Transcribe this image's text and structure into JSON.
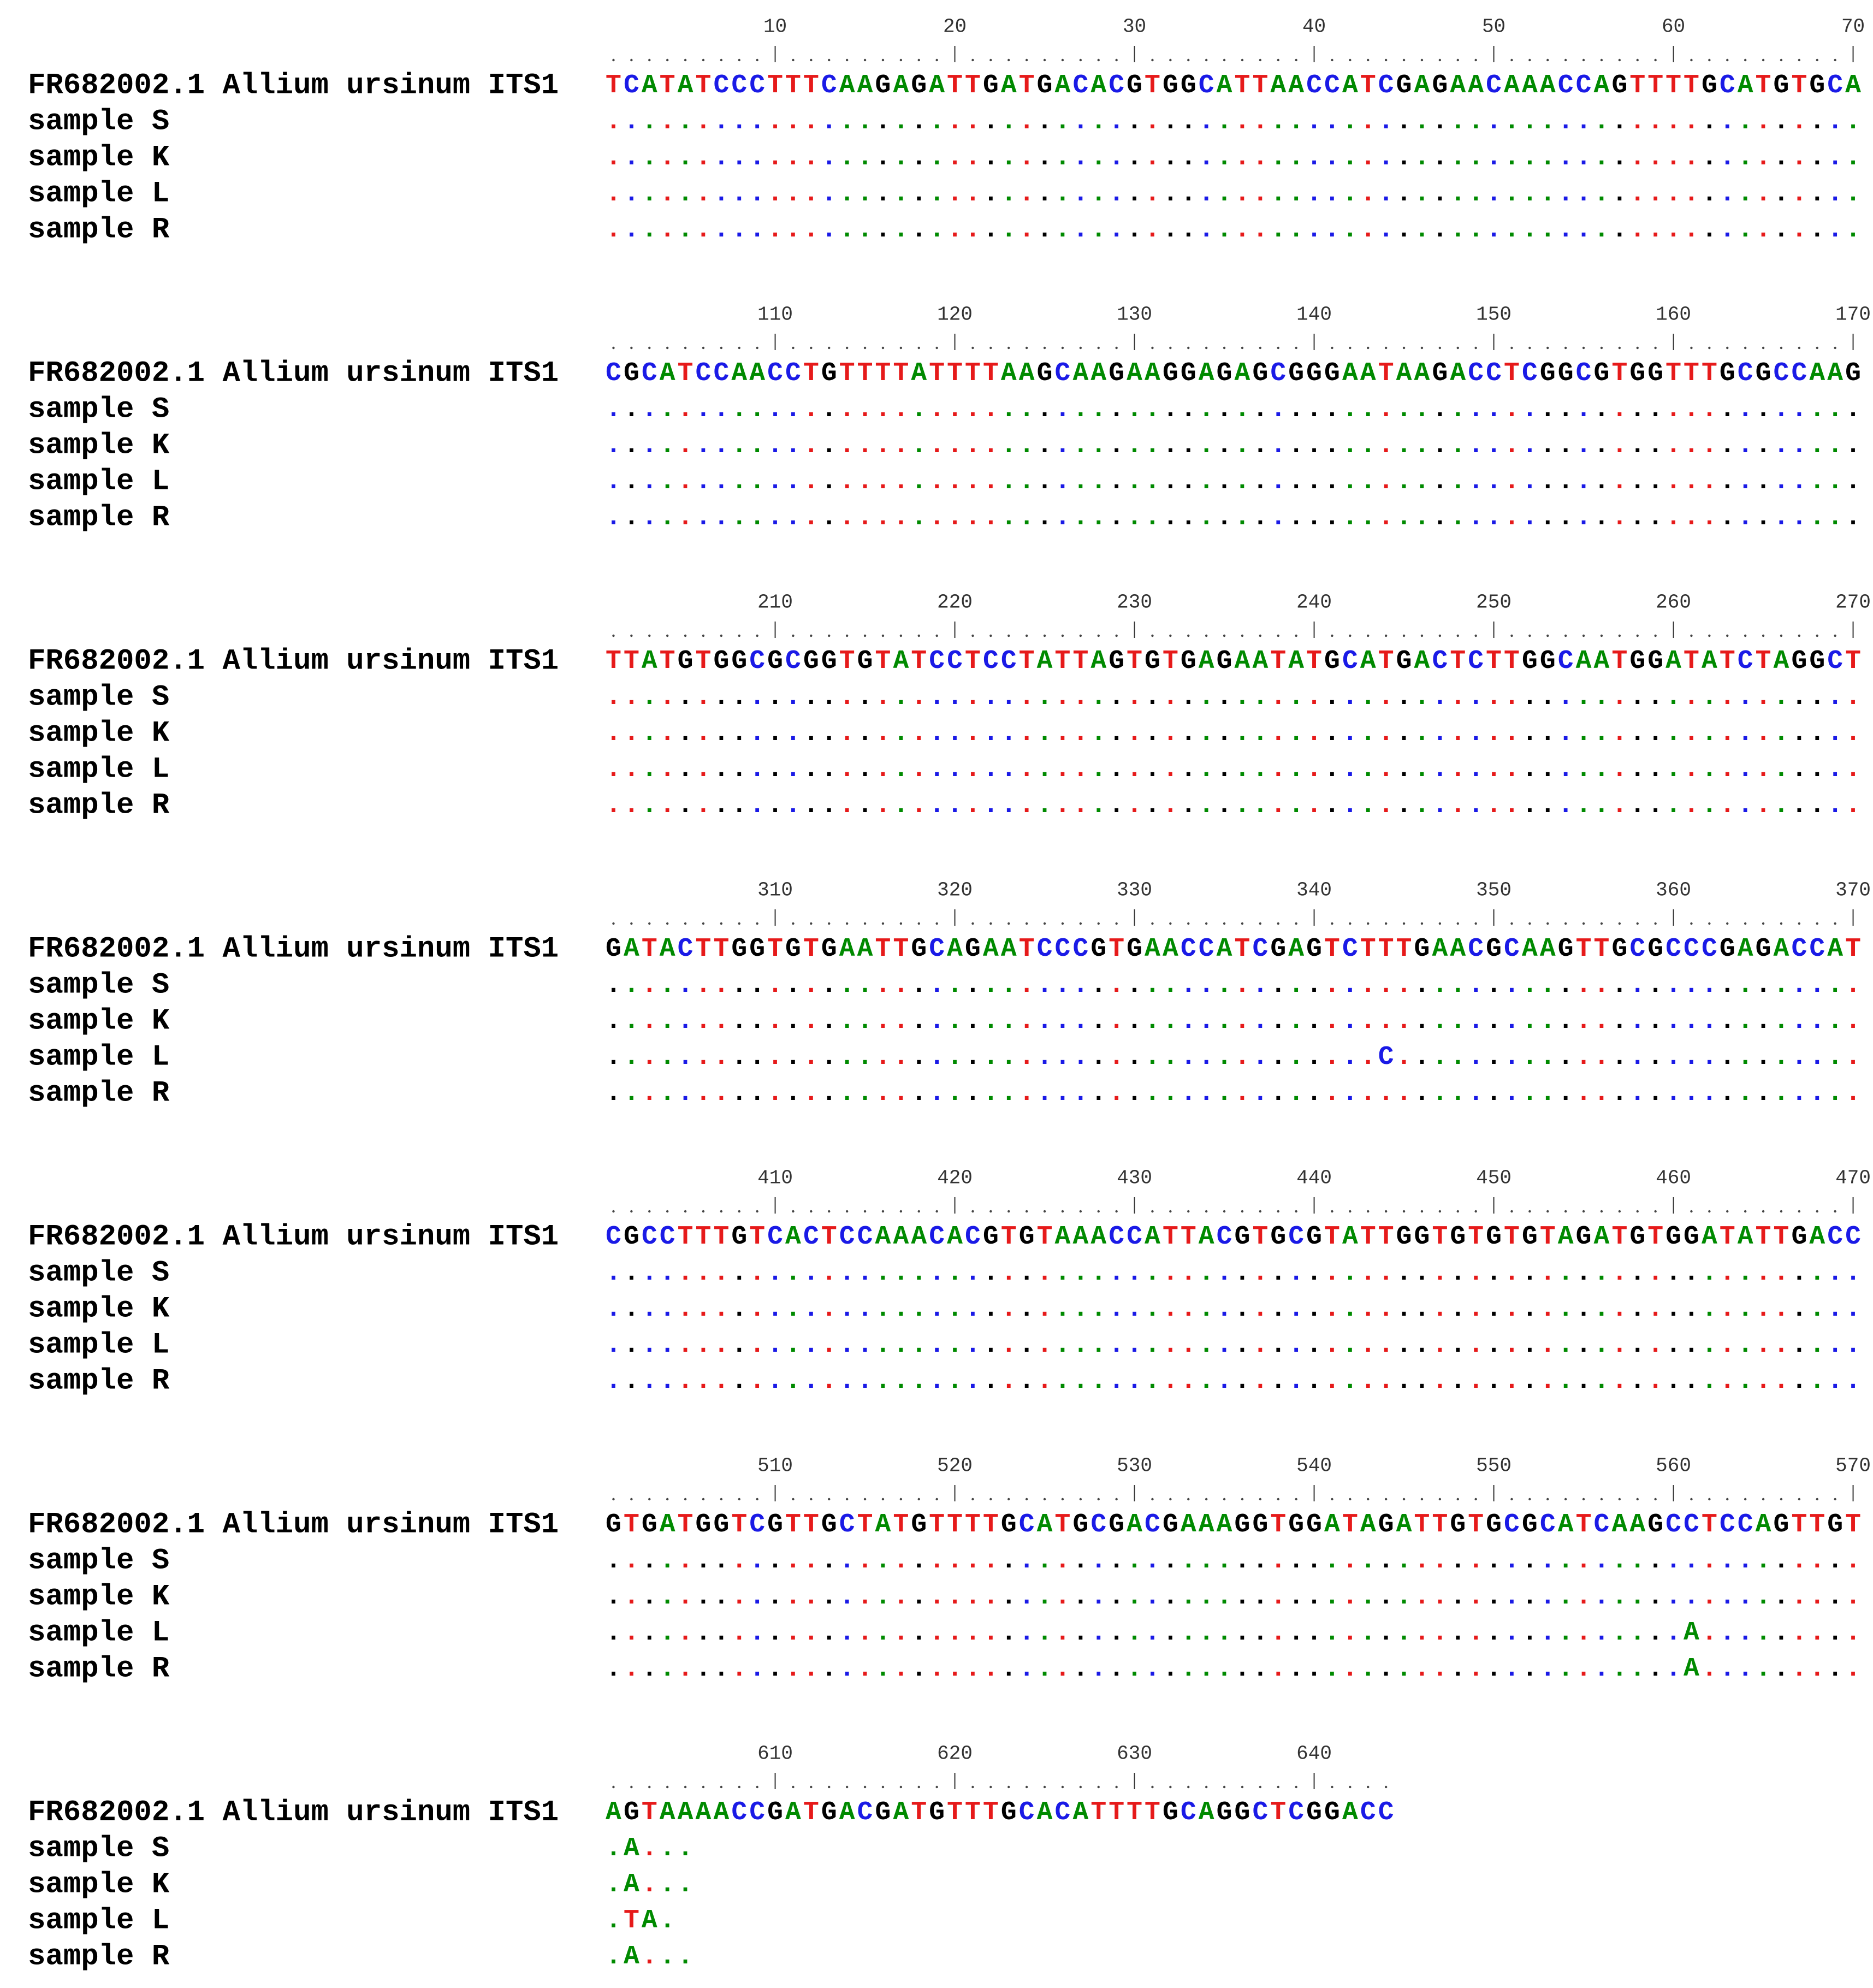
{
  "alignment": {
    "blocks": [
      {
        "ruler": [
          10,
          20,
          30,
          40,
          50,
          60,
          70
        ],
        "rows": [
          {
            "label": "FR682002.1 Allium ursinum ITS1",
            "sequence": "TCATATCCCTTTCAAGAGATTGATGACACGTGGCATTAACCATCGAGAACAAACCAGTTTTGCATGTGCA"
          },
          {
            "label": "sample S",
            "sequence": "......................................................................"
          },
          {
            "label": "sample K",
            "sequence": "......................................................................"
          },
          {
            "label": "sample L",
            "sequence": "......................................................................"
          },
          {
            "label": "sample R",
            "sequence": "......................................................................"
          }
        ]
      },
      {
        "ruler": [
          110,
          120,
          130,
          140,
          150,
          160,
          170
        ],
        "rows": [
          {
            "label": "FR682002.1 Allium ursinum ITS1",
            "sequence": "CGCATCCAACCTGTTTTATTTTAAGCAAGAAGGAGAGCGGGAATAAGACCTCGGCGTGGTTTGCGCCAAG"
          },
          {
            "label": "sample S",
            "sequence": "......................................................................"
          },
          {
            "label": "sample K",
            "sequence": "......................................................................"
          },
          {
            "label": "sample L",
            "sequence": "......................................................................"
          },
          {
            "label": "sample R",
            "sequence": "......................................................................"
          }
        ]
      },
      {
        "ruler": [
          210,
          220,
          230,
          240,
          250,
          260,
          270
        ],
        "rows": [
          {
            "label": "FR682002.1 Allium ursinum ITS1",
            "sequence": "TTATGTGGCGCGGTGTATCCTCCTATTAGTGTGAGAATATGCATGACTCTTGGCAATGGATATCTAGGCT"
          },
          {
            "label": "sample S",
            "sequence": "......................................................................"
          },
          {
            "label": "sample K",
            "sequence": "......................................................................"
          },
          {
            "label": "sample L",
            "sequence": "......................................................................"
          },
          {
            "label": "sample R",
            "sequence": "......................................................................"
          }
        ]
      },
      {
        "ruler": [
          310,
          320,
          330,
          340,
          350,
          360,
          370
        ],
        "rows": [
          {
            "label": "FR682002.1 Allium ursinum ITS1",
            "sequence": "GATACTTGGTGTGAATTGCAGAATCCCGTGAACCATCGAGTCTTTGAACGCAAGTTGCGCCCGAGACCAT"
          },
          {
            "label": "sample S",
            "sequence": "......................................................................"
          },
          {
            "label": "sample K",
            "sequence": "......................................................................"
          },
          {
            "label": "sample L",
            "sequence": "...........................................C.........................."
          },
          {
            "label": "sample R",
            "sequence": "......................................................................"
          }
        ]
      },
      {
        "ruler": [
          410,
          420,
          430,
          440,
          450,
          460,
          470
        ],
        "rows": [
          {
            "label": "FR682002.1 Allium ursinum ITS1",
            "sequence": "CGCCTTTGTCACTCCAAACACGTGTAAACCATTACGTGCGTATTGGTGTGTGTAGATGTGGATATTGACC"
          },
          {
            "label": "sample S",
            "sequence": "......................................................................"
          },
          {
            "label": "sample K",
            "sequence": "......................................................................"
          },
          {
            "label": "sample L",
            "sequence": "......................................................................"
          },
          {
            "label": "sample R",
            "sequence": "......................................................................"
          }
        ]
      },
      {
        "ruler": [
          510,
          520,
          530,
          540,
          550,
          560,
          570
        ],
        "rows": [
          {
            "label": "FR682002.1 Allium ursinum ITS1",
            "sequence": "GTGATGGTCGTTGCTATGTTTTGCATGCGACGAAAGGTGGATAGATTGTGCGCATCAAGCCTCCAGTTGT"
          },
          {
            "label": "sample S",
            "sequence": "......................................................................"
          },
          {
            "label": "sample K",
            "sequence": "......................................................................"
          },
          {
            "label": "sample L",
            "sequence": "............................................................A........."
          },
          {
            "label": "sample R",
            "sequence": "............................................................A........."
          }
        ]
      },
      {
        "ruler": [
          610,
          620,
          630,
          640
        ],
        "rows": [
          {
            "label": "FR682002.1 Allium ursinum ITS1",
            "sequence": "AGTAAAACCGATGACGATGTTTGCACATTTTGCAGGCTCGGACC"
          },
          {
            "label": "sample S",
            "sequence": ".A..."
          },
          {
            "label": "sample K",
            "sequence": ".A..."
          },
          {
            "label": "sample L",
            "sequence": ".TA."
          },
          {
            "label": "sample R",
            "sequence": ".A..."
          }
        ]
      }
    ]
  }
}
